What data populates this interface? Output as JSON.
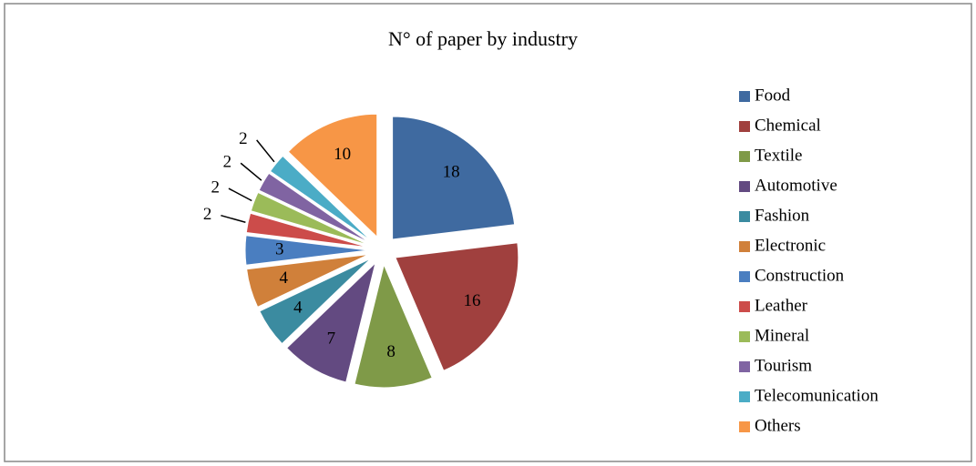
{
  "chart_data": {
    "type": "pie",
    "title": "N° of paper by industry",
    "categories": [
      "Food",
      "Chemical",
      "Textile",
      "Automotive",
      "Fashion",
      "Electronic",
      "Construction",
      "Leather",
      "Mineral",
      "Tourism",
      "Telecomunication",
      "Others"
    ],
    "values": [
      18,
      16,
      8,
      7,
      4,
      4,
      3,
      2,
      2,
      2,
      2,
      10
    ],
    "colors": [
      "#3f6aa0",
      "#a0403e",
      "#7f9a48",
      "#634a81",
      "#3b8ba0",
      "#d0803a",
      "#4a7ec0",
      "#cc4c4a",
      "#9bbb59",
      "#8064a2",
      "#4bacc6",
      "#f79646"
    ],
    "legend": "right"
  }
}
